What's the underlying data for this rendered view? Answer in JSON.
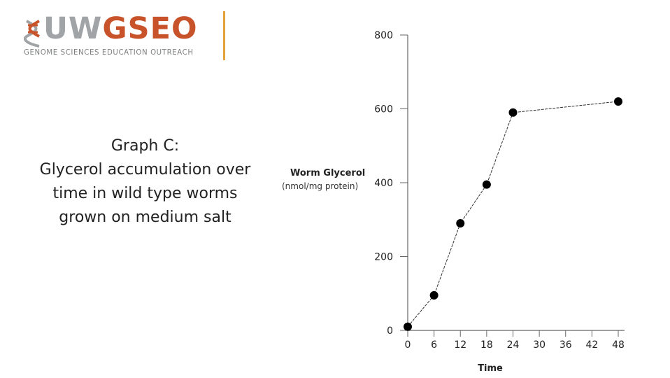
{
  "header": {
    "logo_text_a": "UW",
    "logo_text_b": "GSEO",
    "logo_tagline": "GENOME SCIENCES EDUCATION OUTREACH"
  },
  "caption": {
    "title": "Graph C:",
    "description": "Glycerol accumulation over time in wild type worms grown on medium salt"
  },
  "colors": {
    "logo_gray": "#a0a4a6",
    "logo_accent": "#c8532a",
    "divider": "#e2a43b"
  },
  "chart_data": {
    "type": "line",
    "xlabel": "Time",
    "ylabel": "Worm Glycerol",
    "ylabel_units": "(nmol/mg protein)",
    "x_ticks": [
      "0",
      "6",
      "12",
      "18",
      "24",
      "30",
      "36",
      "42",
      "48"
    ],
    "y_ticks": [
      "0",
      "200",
      "400",
      "600",
      "800"
    ],
    "xlim": [
      0,
      48
    ],
    "ylim": [
      0,
      800
    ],
    "grid": false,
    "series": [
      {
        "x": [
          0,
          6,
          12,
          18,
          24,
          48
        ],
        "y": [
          10,
          95,
          290,
          395,
          590,
          620
        ]
      }
    ]
  }
}
